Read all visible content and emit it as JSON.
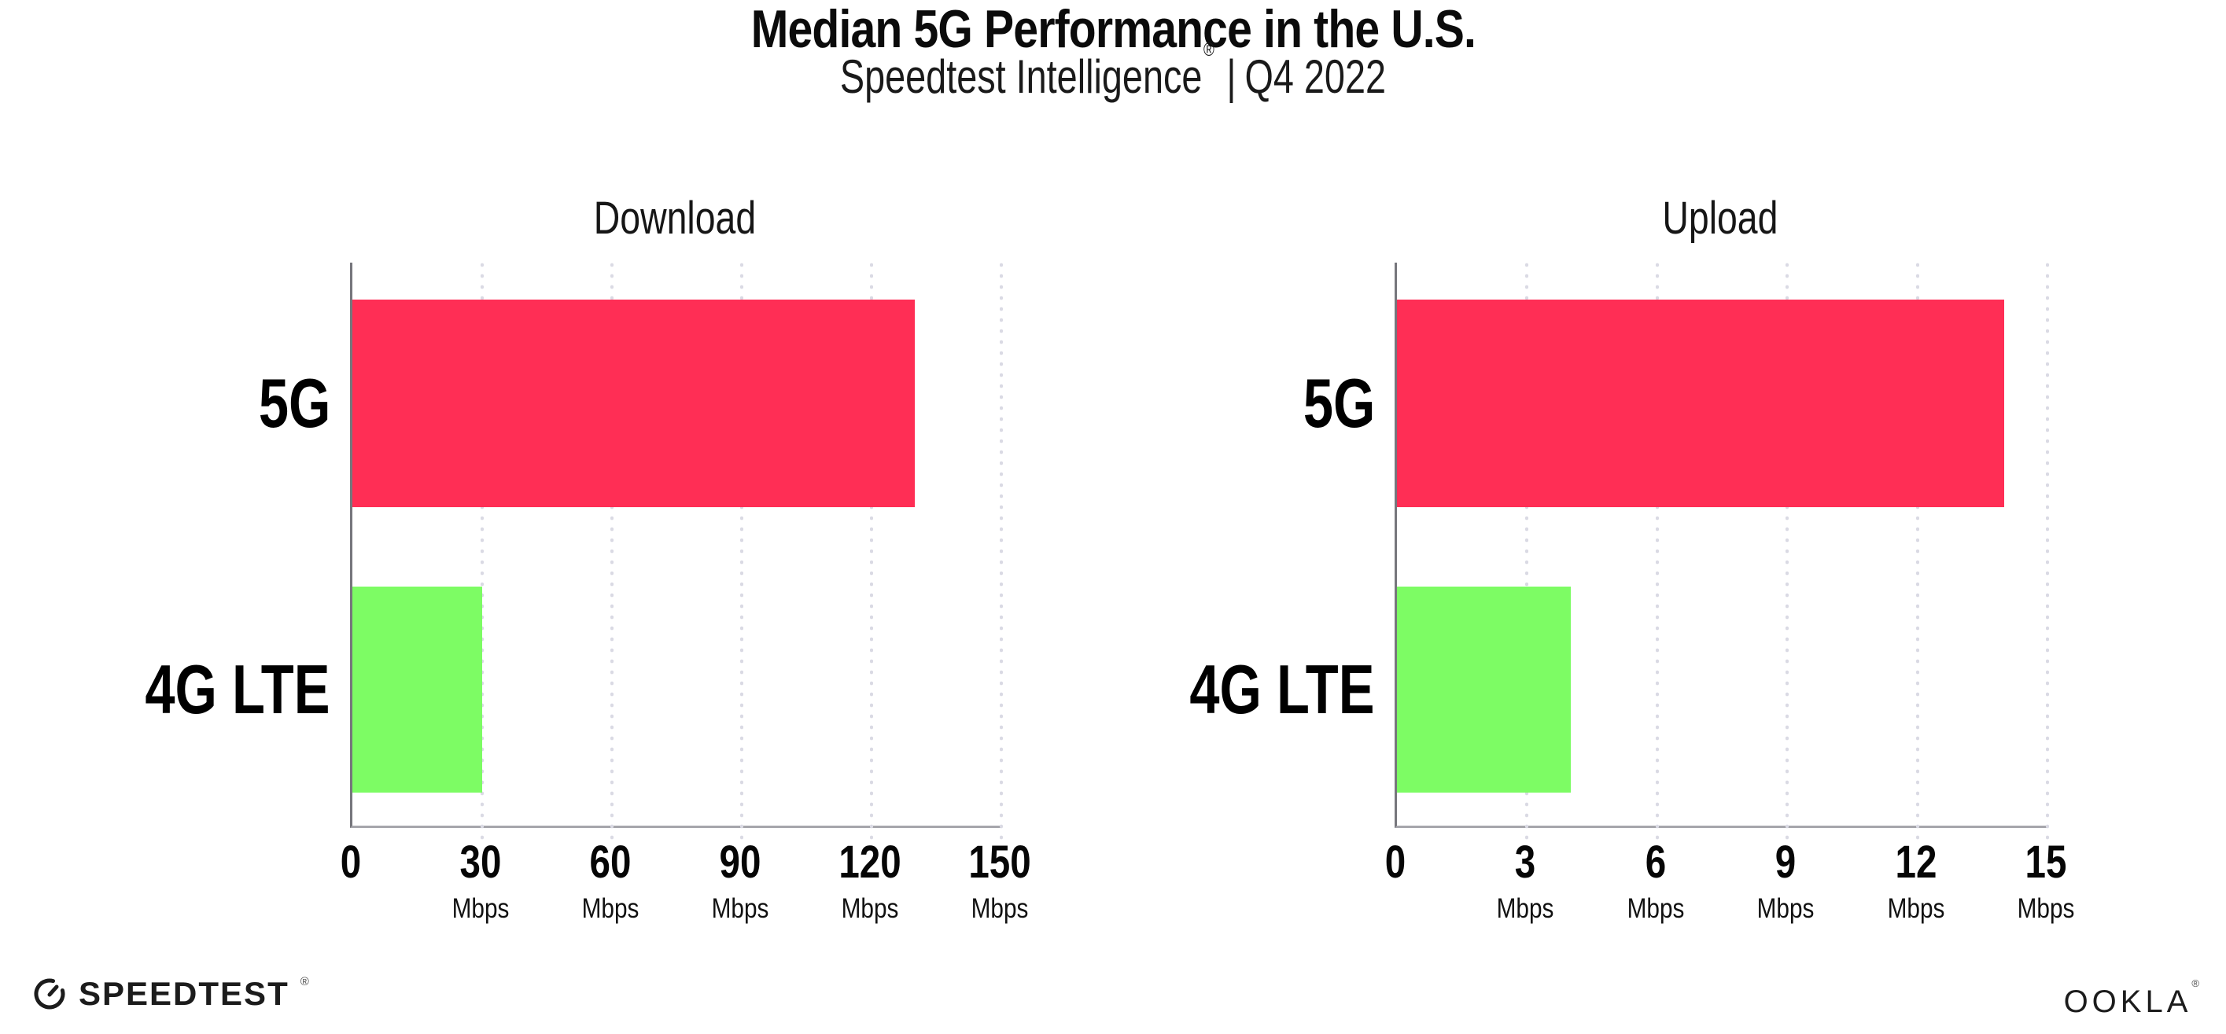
{
  "header": {
    "title": "Median 5G Performance in the U.S.",
    "subtitle_brand": "Speedtest Intelligence",
    "subtitle_reg_mark": "®",
    "subtitle_separator": "|",
    "subtitle_period": "Q4 2022"
  },
  "chart_data": [
    {
      "type": "bar",
      "orientation": "horizontal",
      "title": "Download",
      "categories": [
        "5G",
        "4G LTE"
      ],
      "values": [
        130,
        30
      ],
      "unit": "Mbps",
      "xlim": [
        0,
        150
      ],
      "xticks": [
        0,
        30,
        60,
        90,
        120,
        150
      ],
      "xtick_labels": [
        {
          "num": "0",
          "unit": ""
        },
        {
          "num": "30",
          "unit": "Mbps"
        },
        {
          "num": "60",
          "unit": "Mbps"
        },
        {
          "num": "90",
          "unit": "Mbps"
        },
        {
          "num": "120",
          "unit": "Mbps"
        },
        {
          "num": "150",
          "unit": "Mbps"
        }
      ],
      "colors": [
        "#FF2E55",
        "#7DFC64"
      ],
      "grid": "dotted vertical gridlines",
      "legend": "none"
    },
    {
      "type": "bar",
      "orientation": "horizontal",
      "title": "Upload",
      "categories": [
        "5G",
        "4G LTE"
      ],
      "values": [
        14,
        4
      ],
      "unit": "Mbps",
      "xlim": [
        0,
        15
      ],
      "xticks": [
        0,
        3,
        6,
        9,
        12,
        15
      ],
      "xtick_labels": [
        {
          "num": "0",
          "unit": ""
        },
        {
          "num": "3",
          "unit": "Mbps"
        },
        {
          "num": "6",
          "unit": "Mbps"
        },
        {
          "num": "9",
          "unit": "Mbps"
        },
        {
          "num": "12",
          "unit": "Mbps"
        },
        {
          "num": "15",
          "unit": "Mbps"
        }
      ],
      "colors": [
        "#FF2E55",
        "#7DFC64"
      ],
      "grid": "dotted vertical gridlines",
      "legend": "none"
    }
  ],
  "colors": {
    "bar_5g": "#FF2E55",
    "bar_4g_lte": "#7DFC64",
    "y_axis": "#76767c",
    "x_axis": "#a6a6ac",
    "gridline_dots": "#dadae4",
    "background": "#ffffff"
  },
  "icons": {
    "speedtest_gauge": "circular speedometer gauge with needle, gap at upper right"
  },
  "footer": {
    "speedtest_label": "SPEEDTEST",
    "speedtest_mark": "®",
    "ookla_label": "OOKLA",
    "ookla_mark": "®"
  }
}
